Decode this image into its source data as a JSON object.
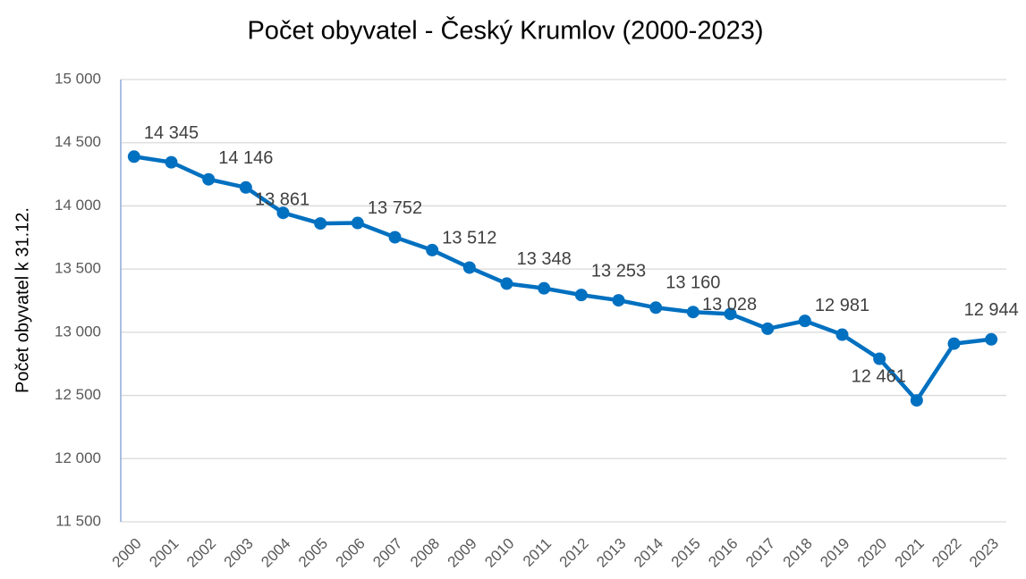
{
  "chart_data": {
    "type": "line",
    "title": "Počet obyvatel - Český Krumlov (2000-2023)",
    "y_label": "Počet obyvatel k 31.12.",
    "categories": [
      "2000",
      "2001",
      "2002",
      "2003",
      "2004",
      "2005",
      "2006",
      "2007",
      "2008",
      "2009",
      "2010",
      "2011",
      "2012",
      "2013",
      "2014",
      "2015",
      "2016",
      "2017",
      "2018",
      "2019",
      "2020",
      "2021",
      "2022",
      "2023"
    ],
    "series": [
      {
        "name": "Počet obyvatel",
        "color": "#0070c0",
        "values": [
          14390,
          14345,
          14210,
          14146,
          13945,
          13861,
          13865,
          13752,
          13650,
          13512,
          13385,
          13348,
          13295,
          13253,
          13195,
          13160,
          13145,
          13028,
          13090,
          12981,
          12790,
          12461,
          12910,
          12944
        ],
        "value_labels": [
          null,
          "14 345",
          null,
          "14 146",
          null,
          "13 861",
          null,
          "13 752",
          null,
          "13 512",
          null,
          "13 348",
          null,
          "13 253",
          null,
          "13 160",
          null,
          "13 028",
          null,
          "12 981",
          null,
          "12 461",
          null,
          "12 944"
        ]
      }
    ],
    "ylim": [
      11500,
      15000
    ],
    "yticks": [
      {
        "value": 11500,
        "label": "11 500"
      },
      {
        "value": 12000,
        "label": "12 000"
      },
      {
        "value": 12500,
        "label": "12 500"
      },
      {
        "value": 13000,
        "label": "13 000"
      },
      {
        "value": 13500,
        "label": "13 500"
      },
      {
        "value": 14000,
        "label": "14 000"
      },
      {
        "value": 14500,
        "label": "14 500"
      },
      {
        "value": 15000,
        "label": "15 000"
      }
    ],
    "grid": true
  }
}
